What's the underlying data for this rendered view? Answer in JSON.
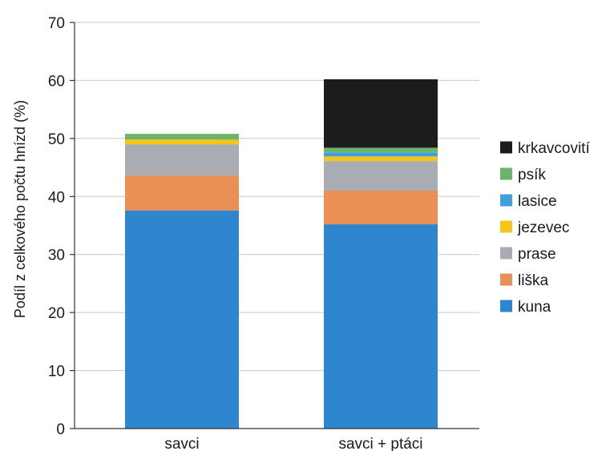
{
  "chart_data": {
    "type": "bar",
    "stacked": true,
    "categories": [
      "savci",
      "savci + ptáci"
    ],
    "series": [
      {
        "name": "kuna",
        "color": "#2e86cf",
        "values": [
          37.6,
          35.2
        ]
      },
      {
        "name": "liška",
        "color": "#ea8f55",
        "values": [
          6.0,
          5.8
        ]
      },
      {
        "name": "prase",
        "color": "#a9adb3",
        "values": [
          5.4,
          5.1
        ]
      },
      {
        "name": "jezevec",
        "color": "#f5c518",
        "values": [
          0.8,
          0.8
        ]
      },
      {
        "name": "lasice",
        "color": "#41a0db",
        "values": [
          0.0,
          0.7
        ]
      },
      {
        "name": "psík",
        "color": "#6bb46a",
        "values": [
          1.0,
          0.8
        ]
      },
      {
        "name": "krkavcovití",
        "color": "#1c1c1c",
        "values": [
          0.0,
          11.8
        ]
      }
    ],
    "legend_order": [
      "krkavcovití",
      "psík",
      "lasice",
      "jezevec",
      "prase",
      "liška",
      "kuna"
    ],
    "ylabel": "Podíl z celkového počtu hnízd (%)",
    "xlabel": "",
    "ylim": [
      0,
      70
    ],
    "yticks": [
      "0",
      "10",
      "20",
      "30",
      "40",
      "50",
      "60",
      "70"
    ],
    "grid": true,
    "legend_position": "right"
  }
}
